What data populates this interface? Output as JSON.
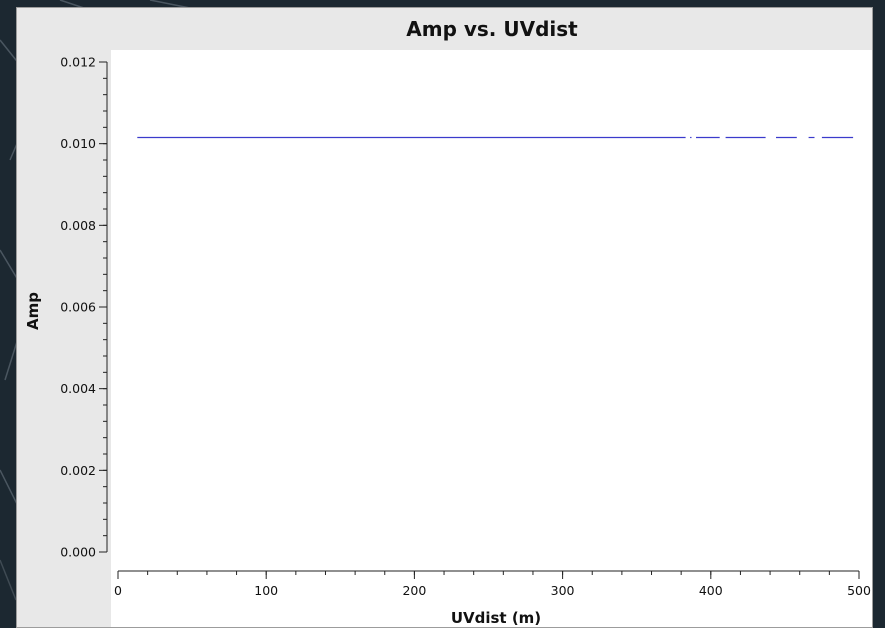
{
  "window": {
    "background": "#e8e8e8",
    "plot_background": "#ffffff"
  },
  "chart_data": {
    "type": "line",
    "title": "Amp vs. UVdist",
    "xlabel": "UVdist (m)",
    "ylabel": "Amp",
    "xlim": [
      0,
      500
    ],
    "ylim": [
      0,
      0.012
    ],
    "x_ticks": [
      {
        "value": 0,
        "label": "0"
      },
      {
        "value": 100,
        "label": "100"
      },
      {
        "value": 200,
        "label": "200"
      },
      {
        "value": 300,
        "label": "300"
      },
      {
        "value": 400,
        "label": "400"
      },
      {
        "value": 500,
        "label": "500"
      }
    ],
    "y_ticks": [
      {
        "value": 0.0,
        "label": "0.000"
      },
      {
        "value": 0.002,
        "label": "0.002"
      },
      {
        "value": 0.004,
        "label": "0.004"
      },
      {
        "value": 0.006,
        "label": "0.006"
      },
      {
        "value": 0.008,
        "label": "0.008"
      },
      {
        "value": 0.01,
        "label": "0.010"
      },
      {
        "value": 0.012,
        "label": "0.012"
      }
    ],
    "x_minor_step": 20,
    "y_minor_step": 0.0004,
    "grid": false,
    "series": [
      {
        "color": "#3b3bcc",
        "segments": [
          {
            "x": [
              13,
              383
            ],
            "y": [
              0.01015,
              0.01015
            ]
          },
          {
            "x": [
              386,
              387
            ],
            "y": [
              0.01015,
              0.01015
            ]
          },
          {
            "x": [
              390,
              406
            ],
            "y": [
              0.01015,
              0.01015
            ]
          },
          {
            "x": [
              410,
              437
            ],
            "y": [
              0.01015,
              0.01015
            ]
          },
          {
            "x": [
              444,
              458
            ],
            "y": [
              0.01015,
              0.01015
            ]
          },
          {
            "x": [
              466,
              470
            ],
            "y": [
              0.01015,
              0.01015
            ]
          },
          {
            "x": [
              475,
              496
            ],
            "y": [
              0.01015,
              0.01015
            ]
          }
        ]
      }
    ]
  }
}
